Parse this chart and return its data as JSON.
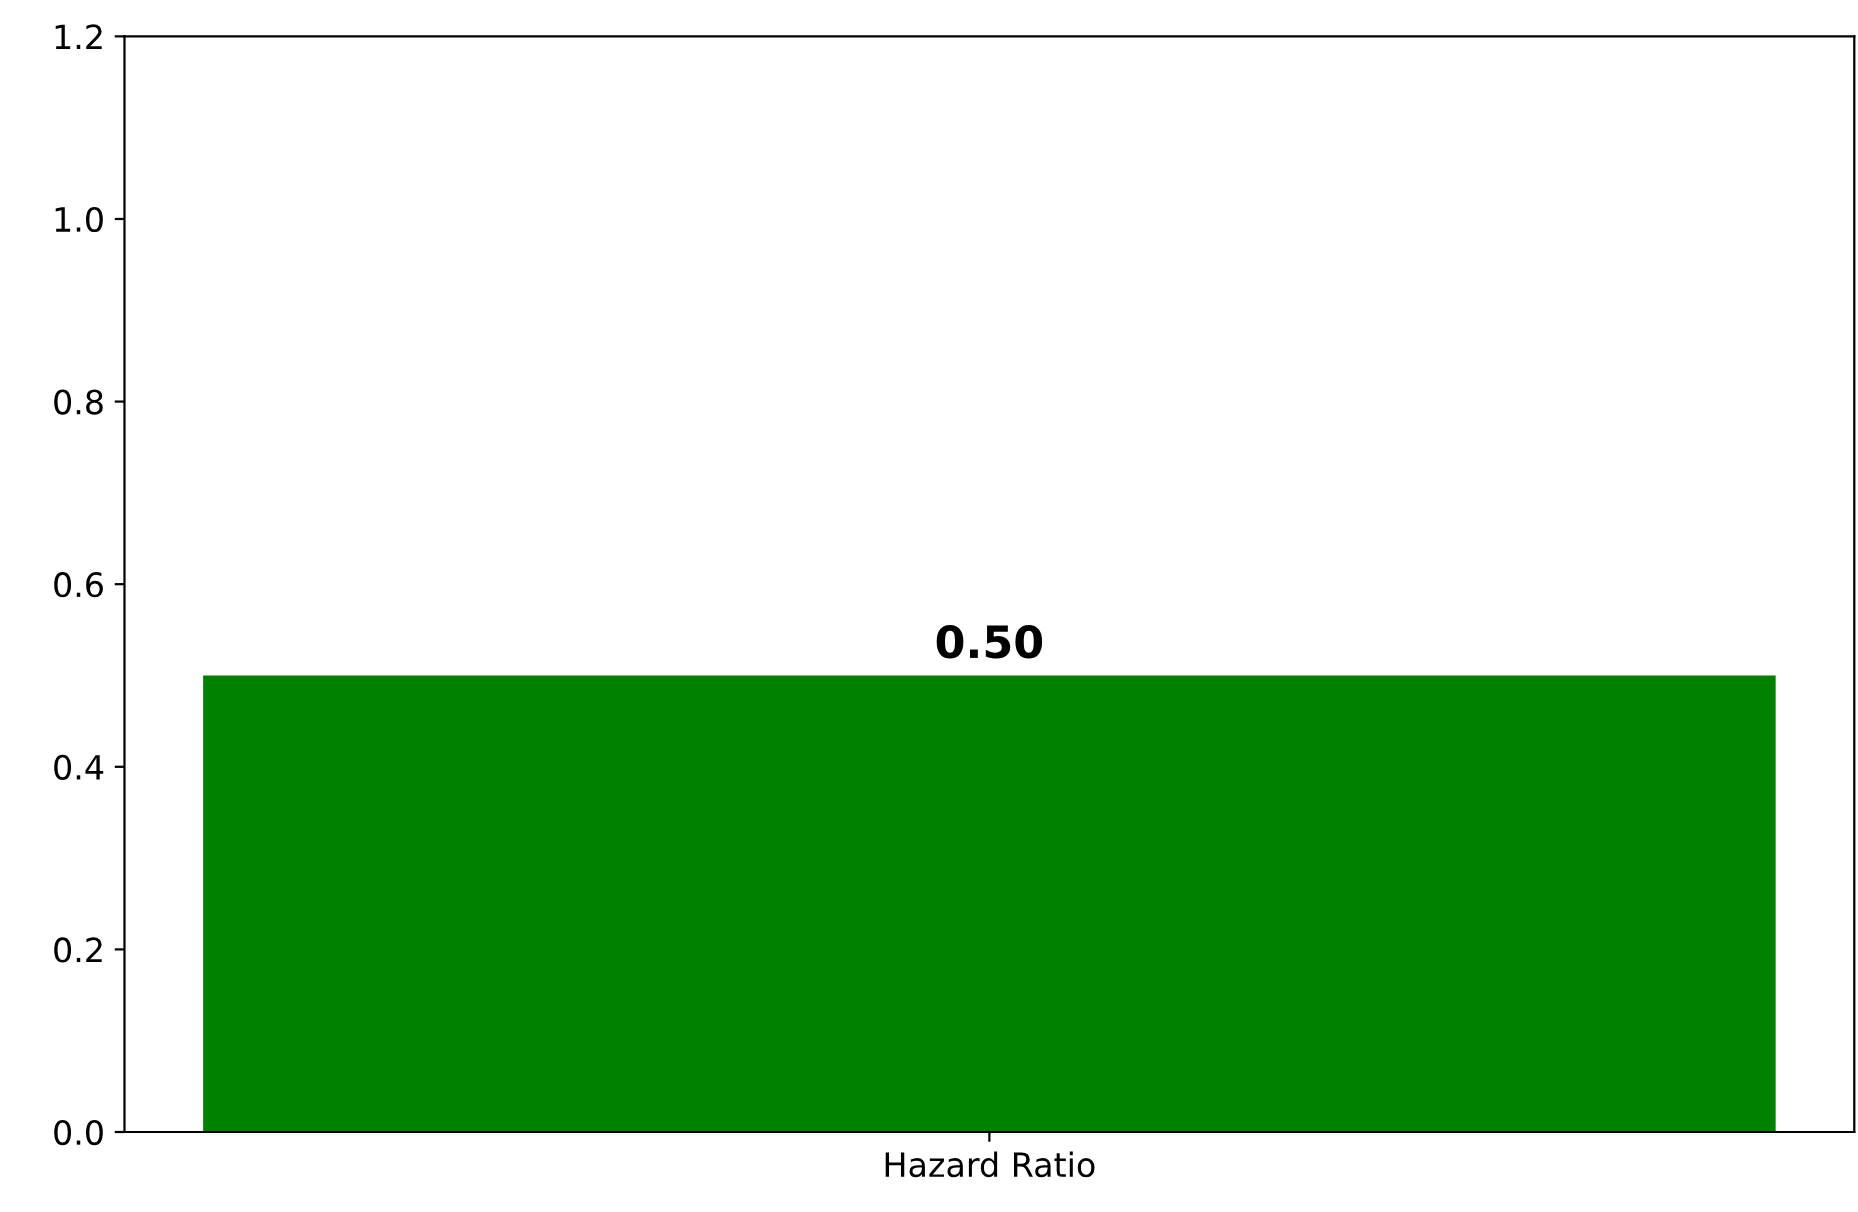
{
  "chart_data": {
    "type": "bar",
    "categories": [
      "Hazard Ratio"
    ],
    "values": [
      0.5
    ],
    "value_labels": [
      "0.50"
    ],
    "color": "#008000",
    "ylim": [
      0,
      1.2
    ],
    "yticks": [
      {
        "value": 0,
        "label": "0.0"
      },
      0.2,
      0.4,
      0.6,
      0.8,
      {
        "value": 1,
        "label": "1.0"
      },
      1.2
    ],
    "grid": false,
    "legend": false
  }
}
